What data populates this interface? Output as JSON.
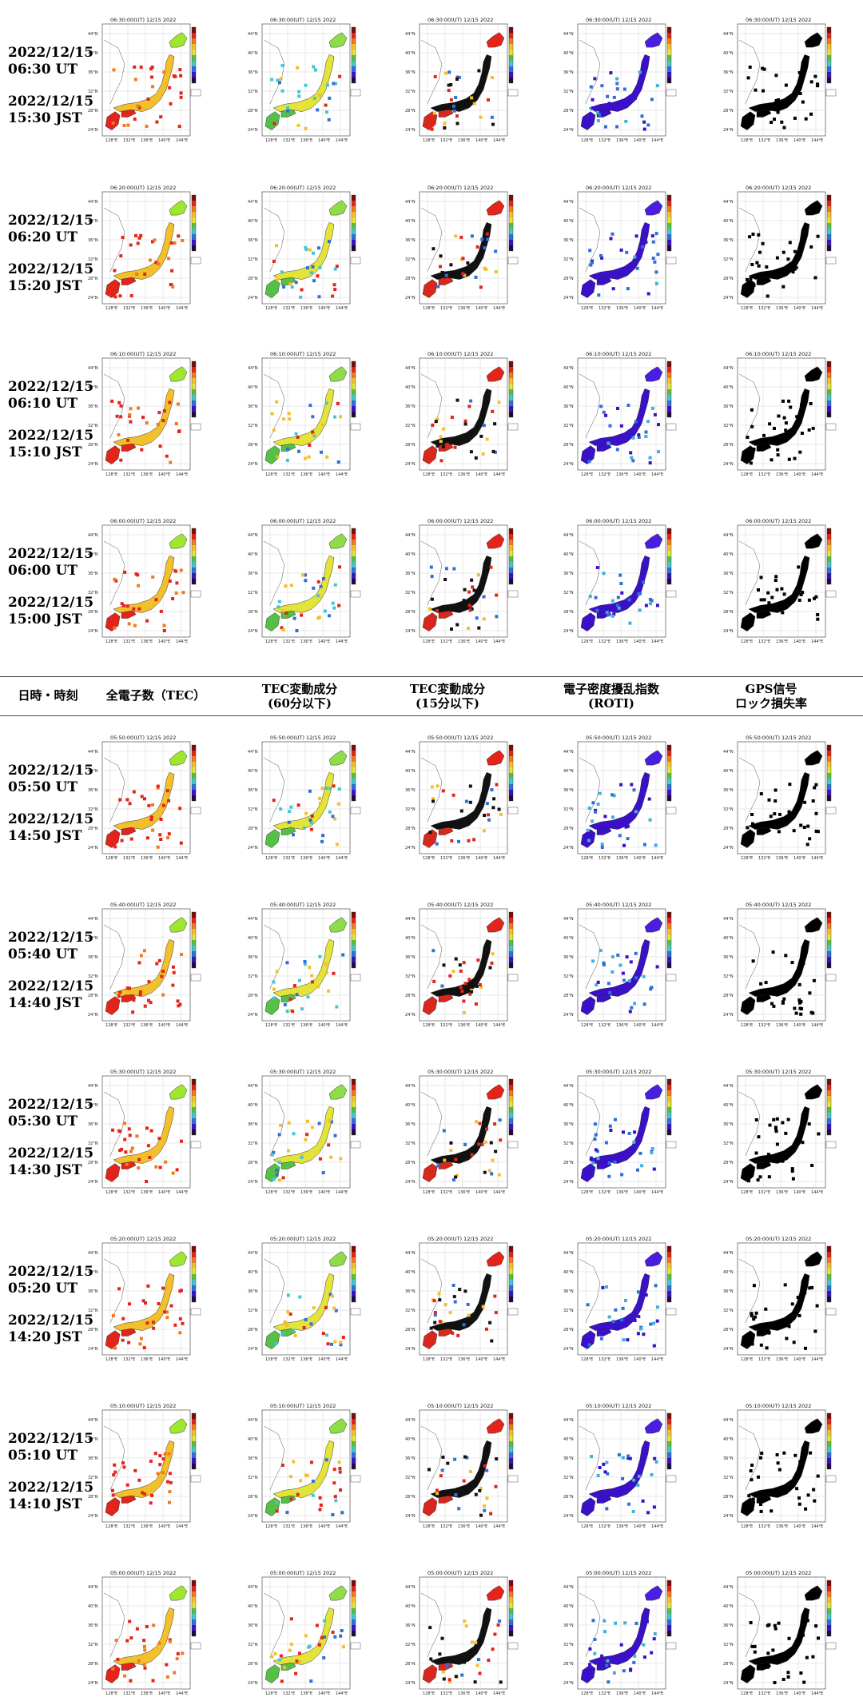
{
  "header": {
    "datetime": "日時・時刻",
    "tec": "全電子数（TEC）",
    "tec60": [
      "TEC変動成分",
      "(60分以下)"
    ],
    "tec15": [
      "TEC変動成分",
      "(15分以下)"
    ],
    "roti": [
      "電子密度擾乱指数",
      "(ROTI)"
    ],
    "lock": [
      "GPS信号",
      "ロック損失率"
    ]
  },
  "map_ticks": {
    "lat": [
      "44°N",
      "40°N",
      "36°N",
      "32°N",
      "28°N",
      "24°N"
    ],
    "lon": [
      "128°E",
      "132°E",
      "136°E",
      "140°E",
      "144°E"
    ]
  },
  "rows": [
    {
      "ut": "2022/12/15\n06:30 UT",
      "jst": "2022/12/15\n15:30 JST",
      "title": "06:30:00(UT) 12/15 2022"
    },
    {
      "ut": "2022/12/15\n06:20 UT",
      "jst": "2022/12/15\n15:20 JST",
      "title": "06:20:00(UT) 12/15 2022"
    },
    {
      "ut": "2022/12/15\n06:10 UT",
      "jst": "2022/12/15\n15:10 JST",
      "title": "06:10:00(UT) 12/15 2022"
    },
    {
      "ut": "2022/12/15\n06:00 UT",
      "jst": "2022/12/15\n15:00 JST",
      "title": "06:00:00(UT) 12/15 2022"
    },
    {
      "ut": "2022/12/15\n05:50 UT",
      "jst": "2022/12/15\n14:50 JST",
      "title": "05:50:00(UT) 12/15 2022"
    },
    {
      "ut": "2022/12/15\n05:40 UT",
      "jst": "2022/12/15\n14:40 JST",
      "title": "05:40:00(UT) 12/15 2022"
    },
    {
      "ut": "2022/12/15\n05:30 UT",
      "jst": "2022/12/15\n14:30 JST",
      "title": "05:30:00(UT) 12/15 2022"
    },
    {
      "ut": "2022/12/15\n05:20 UT",
      "jst": "2022/12/15\n14:20 JST",
      "title": "05:20:00(UT) 12/15 2022"
    },
    {
      "ut": "2022/12/15\n05:10 UT",
      "jst": "2022/12/15\n14:10 JST",
      "title": "05:10:00(UT) 12/15 2022"
    },
    {
      "ut": "",
      "jst": "",
      "title": "05:00:00(UT) 12/15 2022"
    }
  ],
  "column_styles": [
    {
      "name": "tec",
      "land": "#e3241b",
      "north": "#9fe62e",
      "mid": "#f2c02a",
      "dots": [
        "#e3241b",
        "#e3241b",
        "#f07a1c"
      ],
      "colorbar": "rainbow"
    },
    {
      "name": "tec60",
      "land": "#55c046",
      "north": "#8fdc4a",
      "mid": "#e4e33a",
      "dots": [
        "#e3241b",
        "#2f6fd8",
        "#43c6d4",
        "#f2c02a"
      ],
      "colorbar": "rainbow"
    },
    {
      "name": "tec15",
      "land": "#d8281e",
      "north": "#e3241b",
      "mid": "#111111",
      "dots": [
        "#111111",
        "#e3241b",
        "#2f6fd8",
        "#f2c02a"
      ],
      "colorbar": "rainbow"
    },
    {
      "name": "roti",
      "land": "#3b10c9",
      "north": "#4a1ee0",
      "mid": "#3b10c9",
      "dots": [
        "#3b10c9",
        "#2f6fd8",
        "#3fb0d8"
      ],
      "colorbar": "rainbow"
    },
    {
      "name": "lock",
      "land": "#000000",
      "north": "#000000",
      "mid": "#000000",
      "dots": [
        "#000000"
      ],
      "colorbar": "rainbow"
    }
  ]
}
